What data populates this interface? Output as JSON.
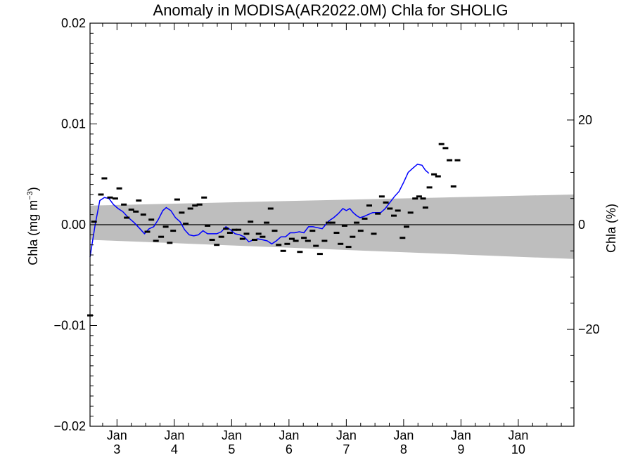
{
  "chart_data": {
    "type": "line",
    "title": "Anomaly in MODISA(AR2022.0M) Chla for SHOLIG",
    "ylabel_left": "Chla (mg m",
    "ylabel_left_sup": "−3",
    "ylabel_left_close": ")",
    "ylabel_right": "Chla (%)",
    "ylim": [
      -0.02,
      0.02
    ],
    "ylim_right": [
      -38.5,
      38.5
    ],
    "xlim": [
      2.53,
      10.97
    ],
    "y_ticks": [
      {
        "value": 0.02,
        "label": "0.02"
      },
      {
        "value": 0.01,
        "label": "0.01"
      },
      {
        "value": 0.0,
        "label": "0.00"
      },
      {
        "value": -0.01,
        "label": "−0.01"
      },
      {
        "value": -0.02,
        "label": "−0.02"
      }
    ],
    "y_right_ticks": [
      {
        "value": 20,
        "label": "20"
      },
      {
        "value": 0,
        "label": "0"
      },
      {
        "value": -20,
        "label": "−20"
      }
    ],
    "x_ticks": [
      {
        "value": 3,
        "month": "Jan",
        "year": "3"
      },
      {
        "value": 4,
        "month": "Jan",
        "year": "4"
      },
      {
        "value": 5,
        "month": "Jan",
        "year": "5"
      },
      {
        "value": 6,
        "month": "Jan",
        "year": "6"
      },
      {
        "value": 7,
        "month": "Jan",
        "year": "7"
      },
      {
        "value": 8,
        "month": "Jan",
        "year": "8"
      },
      {
        "value": 9,
        "month": "Jan",
        "year": "9"
      },
      {
        "value": 10,
        "month": "Jan",
        "year": "10"
      }
    ],
    "band": {
      "x": [
        2.53,
        10.97
      ],
      "upper": [
        0.0019,
        0.003
      ],
      "lower": [
        -0.0015,
        -0.0034
      ],
      "color": "#bebebe"
    },
    "scatter": {
      "color": "#000000",
      "points": [
        [
          2.53,
          -0.009
        ],
        [
          2.6,
          0.0003
        ],
        [
          2.72,
          0.003
        ],
        [
          2.78,
          0.0046
        ],
        [
          2.88,
          0.0027
        ],
        [
          2.97,
          0.0026
        ],
        [
          3.04,
          0.0036
        ],
        [
          3.12,
          0.002
        ],
        [
          3.17,
          0.0007
        ],
        [
          3.25,
          0.0015
        ],
        [
          3.33,
          0.0013
        ],
        [
          3.38,
          0.0024
        ],
        [
          3.46,
          0.001
        ],
        [
          3.53,
          -0.0007
        ],
        [
          3.6,
          0.0005
        ],
        [
          3.68,
          -0.0016
        ],
        [
          3.77,
          -0.0012
        ],
        [
          3.85,
          -0.0002
        ],
        [
          3.92,
          -0.0018
        ],
        [
          3.98,
          -0.0006
        ],
        [
          4.05,
          0.0025
        ],
        [
          4.13,
          0.0012
        ],
        [
          4.2,
          0.0001
        ],
        [
          4.28,
          0.0016
        ],
        [
          4.36,
          0.0019
        ],
        [
          4.44,
          0.002
        ],
        [
          4.52,
          0.0027
        ],
        [
          4.58,
          -0.0001
        ],
        [
          4.66,
          -0.0015
        ],
        [
          4.74,
          -0.002
        ],
        [
          4.82,
          -0.0012
        ],
        [
          4.9,
          -0.0004
        ],
        [
          4.97,
          -0.0008
        ],
        [
          5.05,
          -0.0005
        ],
        [
          5.12,
          -0.0005
        ],
        [
          5.19,
          -0.0014
        ],
        [
          5.26,
          -0.0009
        ],
        [
          5.33,
          0.0003
        ],
        [
          5.4,
          -0.0015
        ],
        [
          5.47,
          -0.0009
        ],
        [
          5.54,
          -0.0012
        ],
        [
          5.61,
          0.0002
        ],
        [
          5.68,
          0.0016
        ],
        [
          5.75,
          -0.0006
        ],
        [
          5.82,
          -0.002
        ],
        [
          5.9,
          -0.0026
        ],
        [
          5.97,
          -0.0019
        ],
        [
          6.05,
          -0.0014
        ],
        [
          6.12,
          -0.0016
        ],
        [
          6.19,
          -0.0027
        ],
        [
          6.26,
          -0.0013
        ],
        [
          6.33,
          -0.0016
        ],
        [
          6.41,
          -0.0006
        ],
        [
          6.47,
          -0.0021
        ],
        [
          6.54,
          -0.0029
        ],
        [
          6.62,
          -0.0016
        ],
        [
          6.69,
          0.0002
        ],
        [
          6.76,
          0.0002
        ],
        [
          6.83,
          -0.0008
        ],
        [
          6.9,
          -0.0019
        ],
        [
          6.97,
          -0.0001
        ],
        [
          7.04,
          -0.0022
        ],
        [
          7.11,
          -0.0012
        ],
        [
          7.18,
          0.0002
        ],
        [
          7.25,
          -0.0006
        ],
        [
          7.32,
          0.0006
        ],
        [
          7.4,
          0.0019
        ],
        [
          7.48,
          -0.0009
        ],
        [
          7.55,
          0.0011
        ],
        [
          7.62,
          0.0028
        ],
        [
          7.69,
          0.0022
        ],
        [
          7.76,
          0.0016
        ],
        [
          7.83,
          0.0009
        ],
        [
          7.9,
          0.0014
        ],
        [
          7.98,
          -0.0013
        ],
        [
          8.05,
          -0.0002
        ],
        [
          8.12,
          0.0012
        ],
        [
          8.2,
          0.0026
        ],
        [
          8.27,
          0.0028
        ],
        [
          8.34,
          0.0026
        ],
        [
          8.38,
          0.0017
        ],
        [
          8.45,
          0.0037
        ],
        [
          8.53,
          0.005
        ],
        [
          8.6,
          0.0048
        ],
        [
          8.66,
          0.008
        ],
        [
          8.73,
          0.0076
        ],
        [
          8.8,
          0.0064
        ],
        [
          8.87,
          0.0038
        ],
        [
          8.94,
          0.0064
        ]
      ]
    },
    "line": {
      "color": "#0000ff",
      "points": [
        [
          2.53,
          -0.0032
        ],
        [
          2.62,
          0.0
        ],
        [
          2.7,
          0.0024
        ],
        [
          2.78,
          0.0027
        ],
        [
          2.86,
          0.0026
        ],
        [
          2.94,
          0.002
        ],
        [
          3.02,
          0.0016
        ],
        [
          3.1,
          0.0013
        ],
        [
          3.2,
          0.0007
        ],
        [
          3.3,
          0.0002
        ],
        [
          3.4,
          -0.0004
        ],
        [
          3.48,
          -0.0009
        ],
        [
          3.56,
          -0.0004
        ],
        [
          3.64,
          -0.0002
        ],
        [
          3.72,
          0.0005
        ],
        [
          3.8,
          0.0014
        ],
        [
          3.86,
          0.0017
        ],
        [
          3.94,
          0.0014
        ],
        [
          4.02,
          0.0007
        ],
        [
          4.1,
          0.0003
        ],
        [
          4.18,
          -0.0005
        ],
        [
          4.26,
          -0.001
        ],
        [
          4.34,
          -0.0011
        ],
        [
          4.42,
          -0.001
        ],
        [
          4.5,
          -0.0006
        ],
        [
          4.58,
          -0.0009
        ],
        [
          4.66,
          -0.0009
        ],
        [
          4.74,
          -0.0009
        ],
        [
          4.82,
          -0.0007
        ],
        [
          4.9,
          -0.0002
        ],
        [
          4.98,
          -0.0005
        ],
        [
          5.06,
          -0.0009
        ],
        [
          5.14,
          -0.001
        ],
        [
          5.22,
          -0.0012
        ],
        [
          5.3,
          -0.0017
        ],
        [
          5.38,
          -0.0015
        ],
        [
          5.46,
          -0.0014
        ],
        [
          5.54,
          -0.0015
        ],
        [
          5.62,
          -0.0016
        ],
        [
          5.7,
          -0.0019
        ],
        [
          5.78,
          -0.0016
        ],
        [
          5.86,
          -0.0012
        ],
        [
          5.94,
          -0.0012
        ],
        [
          6.02,
          -0.0008
        ],
        [
          6.1,
          -0.0008
        ],
        [
          6.18,
          -0.0007
        ],
        [
          6.26,
          -0.0008
        ],
        [
          6.34,
          -0.0002
        ],
        [
          6.42,
          -0.0002
        ],
        [
          6.5,
          -0.0003
        ],
        [
          6.58,
          -0.0004
        ],
        [
          6.64,
          0.0
        ],
        [
          6.7,
          0.0004
        ],
        [
          6.78,
          0.0007
        ],
        [
          6.86,
          0.0011
        ],
        [
          6.94,
          0.0016
        ],
        [
          7.0,
          0.0014
        ],
        [
          7.06,
          0.0016
        ],
        [
          7.12,
          0.0012
        ],
        [
          7.18,
          0.0009
        ],
        [
          7.24,
          0.0007
        ],
        [
          7.3,
          0.0008
        ],
        [
          7.38,
          0.001
        ],
        [
          7.46,
          0.0012
        ],
        [
          7.54,
          0.0012
        ],
        [
          7.6,
          0.0012
        ],
        [
          7.68,
          0.0016
        ],
        [
          7.76,
          0.0022
        ],
        [
          7.84,
          0.0028
        ],
        [
          7.92,
          0.0033
        ],
        [
          8.0,
          0.0042
        ],
        [
          8.08,
          0.0052
        ],
        [
          8.16,
          0.0056
        ],
        [
          8.24,
          0.006
        ],
        [
          8.32,
          0.0059
        ],
        [
          8.38,
          0.0054
        ],
        [
          8.44,
          0.0051
        ]
      ]
    }
  }
}
